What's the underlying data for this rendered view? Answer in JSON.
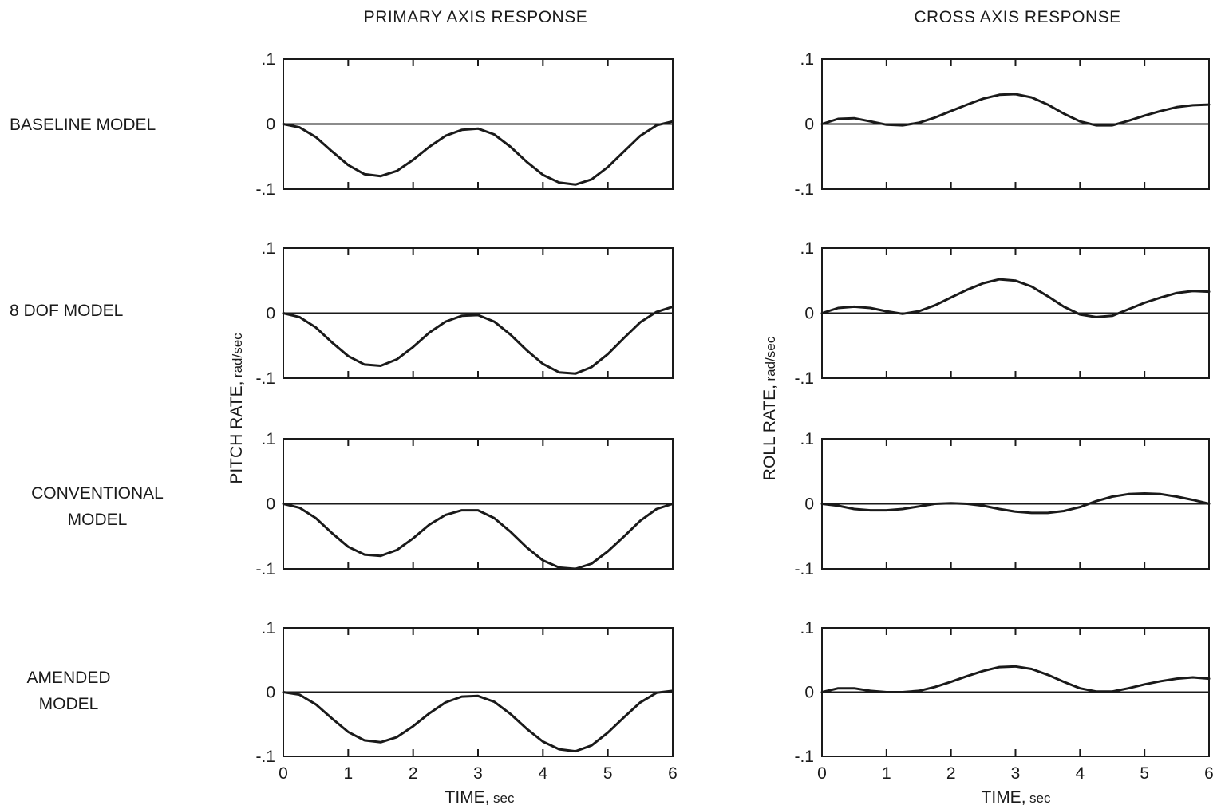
{
  "column_titles": [
    "PRIMARY AXIS RESPONSE",
    "CROSS AXIS RESPONSE"
  ],
  "row_labels": [
    [
      "BASELINE MODEL"
    ],
    [
      "8 DOF MODEL"
    ],
    [
      "CONVENTIONAL",
      "MODEL"
    ],
    [
      "AMENDED",
      "MODEL"
    ]
  ],
  "y_axis_labels": {
    "left": {
      "main": "PITCH RATE,",
      "unit": "rad/sec"
    },
    "right": {
      "main": "ROLL RATE,",
      "unit": "rad/sec"
    }
  },
  "x_axis_label": {
    "main": "TIME,",
    "unit": "sec"
  },
  "y_tick_labels": [
    ".1",
    "0",
    "-.1"
  ],
  "x_tick_labels": [
    "0",
    "1",
    "2",
    "3",
    "4",
    "5",
    "6"
  ],
  "chart_data": [
    {
      "type": "line",
      "panel": "primary-baseline",
      "xlim": [
        0,
        6
      ],
      "ylim": [
        -0.1,
        0.1
      ],
      "x": [
        0,
        0.25,
        0.5,
        0.75,
        1.0,
        1.25,
        1.5,
        1.75,
        2.0,
        2.25,
        2.5,
        2.75,
        3.0,
        3.25,
        3.5,
        3.75,
        4.0,
        4.25,
        4.5,
        4.75,
        5.0,
        5.25,
        5.5,
        5.75,
        6.0
      ],
      "series": [
        {
          "values": [
            0,
            -0.005,
            -0.02,
            -0.042,
            -0.063,
            -0.077,
            -0.08,
            -0.072,
            -0.055,
            -0.035,
            -0.018,
            -0.009,
            -0.007,
            -0.016,
            -0.035,
            -0.058,
            -0.078,
            -0.09,
            -0.093,
            -0.085,
            -0.066,
            -0.042,
            -0.018,
            -0.002,
            0.004
          ]
        }
      ]
    },
    {
      "type": "line",
      "panel": "cross-baseline",
      "xlim": [
        0,
        6
      ],
      "ylim": [
        -0.1,
        0.1
      ],
      "x": [
        0,
        0.25,
        0.5,
        0.75,
        1.0,
        1.25,
        1.5,
        1.75,
        2.0,
        2.25,
        2.5,
        2.75,
        3.0,
        3.25,
        3.5,
        3.75,
        4.0,
        4.25,
        4.5,
        4.75,
        5.0,
        5.25,
        5.5,
        5.75,
        6.0
      ],
      "series": [
        {
          "values": [
            0,
            0.008,
            0.009,
            0.004,
            -0.001,
            -0.002,
            0.002,
            0.01,
            0.02,
            0.03,
            0.039,
            0.045,
            0.046,
            0.041,
            0.03,
            0.016,
            0.004,
            -0.002,
            -0.002,
            0.005,
            0.013,
            0.02,
            0.026,
            0.029,
            0.03
          ]
        }
      ]
    },
    {
      "type": "line",
      "panel": "primary-8dof",
      "xlim": [
        0,
        6
      ],
      "ylim": [
        -0.1,
        0.1
      ],
      "x": [
        0,
        0.25,
        0.5,
        0.75,
        1.0,
        1.25,
        1.5,
        1.75,
        2.0,
        2.25,
        2.5,
        2.75,
        3.0,
        3.25,
        3.5,
        3.75,
        4.0,
        4.25,
        4.5,
        4.75,
        5.0,
        5.25,
        5.5,
        5.75,
        6.0
      ],
      "series": [
        {
          "values": [
            0,
            -0.006,
            -0.022,
            -0.045,
            -0.066,
            -0.079,
            -0.081,
            -0.071,
            -0.052,
            -0.03,
            -0.013,
            -0.004,
            -0.003,
            -0.013,
            -0.033,
            -0.057,
            -0.078,
            -0.091,
            -0.093,
            -0.083,
            -0.063,
            -0.038,
            -0.014,
            0.002,
            0.01
          ]
        }
      ]
    },
    {
      "type": "line",
      "panel": "cross-8dof",
      "xlim": [
        0,
        6
      ],
      "ylim": [
        -0.1,
        0.1
      ],
      "x": [
        0,
        0.25,
        0.5,
        0.75,
        1.0,
        1.25,
        1.5,
        1.75,
        2.0,
        2.25,
        2.5,
        2.75,
        3.0,
        3.25,
        3.5,
        3.75,
        4.0,
        4.25,
        4.5,
        4.75,
        5.0,
        5.25,
        5.5,
        5.75,
        6.0
      ],
      "series": [
        {
          "values": [
            0,
            0.008,
            0.01,
            0.008,
            0.003,
            -0.001,
            0.003,
            0.012,
            0.024,
            0.036,
            0.046,
            0.052,
            0.05,
            0.041,
            0.026,
            0.01,
            -0.002,
            -0.006,
            -0.004,
            0.006,
            0.016,
            0.024,
            0.031,
            0.034,
            0.033
          ]
        }
      ]
    },
    {
      "type": "line",
      "panel": "primary-conventional",
      "xlim": [
        0,
        6
      ],
      "ylim": [
        -0.1,
        0.1
      ],
      "x": [
        0,
        0.25,
        0.5,
        0.75,
        1.0,
        1.25,
        1.5,
        1.75,
        2.0,
        2.25,
        2.5,
        2.75,
        3.0,
        3.25,
        3.5,
        3.75,
        4.0,
        4.25,
        4.5,
        4.75,
        5.0,
        5.25,
        5.5,
        5.75,
        6.0
      ],
      "series": [
        {
          "values": [
            0,
            -0.006,
            -0.022,
            -0.045,
            -0.066,
            -0.078,
            -0.08,
            -0.071,
            -0.053,
            -0.032,
            -0.017,
            -0.01,
            -0.01,
            -0.022,
            -0.043,
            -0.067,
            -0.087,
            -0.098,
            -0.1,
            -0.092,
            -0.073,
            -0.05,
            -0.026,
            -0.008,
            0
          ]
        }
      ]
    },
    {
      "type": "line",
      "panel": "cross-conventional",
      "xlim": [
        0,
        6
      ],
      "ylim": [
        -0.1,
        0.1
      ],
      "x": [
        0,
        0.25,
        0.5,
        0.75,
        1.0,
        1.25,
        1.5,
        1.75,
        2.0,
        2.25,
        2.5,
        2.75,
        3.0,
        3.25,
        3.5,
        3.75,
        4.0,
        4.25,
        4.5,
        4.75,
        5.0,
        5.25,
        5.5,
        5.75,
        6.0
      ],
      "series": [
        {
          "values": [
            0,
            -0.003,
            -0.008,
            -0.01,
            -0.01,
            -0.008,
            -0.004,
            0,
            0.001,
            0,
            -0.003,
            -0.008,
            -0.012,
            -0.014,
            -0.014,
            -0.011,
            -0.005,
            0.004,
            0.011,
            0.015,
            0.016,
            0.015,
            0.011,
            0.006,
            0
          ]
        }
      ]
    },
    {
      "type": "line",
      "panel": "primary-amended",
      "xlim": [
        0,
        6
      ],
      "ylim": [
        -0.1,
        0.1
      ],
      "x": [
        0,
        0.25,
        0.5,
        0.75,
        1.0,
        1.25,
        1.5,
        1.75,
        2.0,
        2.25,
        2.5,
        2.75,
        3.0,
        3.25,
        3.5,
        3.75,
        4.0,
        4.25,
        4.5,
        4.75,
        5.0,
        5.25,
        5.5,
        5.75,
        6.0
      ],
      "series": [
        {
          "values": [
            0,
            -0.004,
            -0.019,
            -0.041,
            -0.062,
            -0.075,
            -0.078,
            -0.07,
            -0.053,
            -0.033,
            -0.016,
            -0.007,
            -0.006,
            -0.015,
            -0.034,
            -0.057,
            -0.077,
            -0.089,
            -0.092,
            -0.083,
            -0.063,
            -0.039,
            -0.016,
            -0.001,
            0.002
          ]
        }
      ]
    },
    {
      "type": "line",
      "panel": "cross-amended",
      "xlim": [
        0,
        6
      ],
      "ylim": [
        -0.1,
        0.1
      ],
      "x": [
        0,
        0.25,
        0.5,
        0.75,
        1.0,
        1.25,
        1.5,
        1.75,
        2.0,
        2.25,
        2.5,
        2.75,
        3.0,
        3.25,
        3.5,
        3.75,
        4.0,
        4.25,
        4.5,
        4.75,
        5.0,
        5.25,
        5.5,
        5.75,
        6.0
      ],
      "series": [
        {
          "values": [
            0,
            0.006,
            0.006,
            0.002,
            0,
            0,
            0.002,
            0.008,
            0.016,
            0.025,
            0.033,
            0.039,
            0.04,
            0.036,
            0.027,
            0.016,
            0.006,
            0.001,
            0.001,
            0.006,
            0.012,
            0.017,
            0.021,
            0.023,
            0.021
          ]
        }
      ]
    }
  ]
}
